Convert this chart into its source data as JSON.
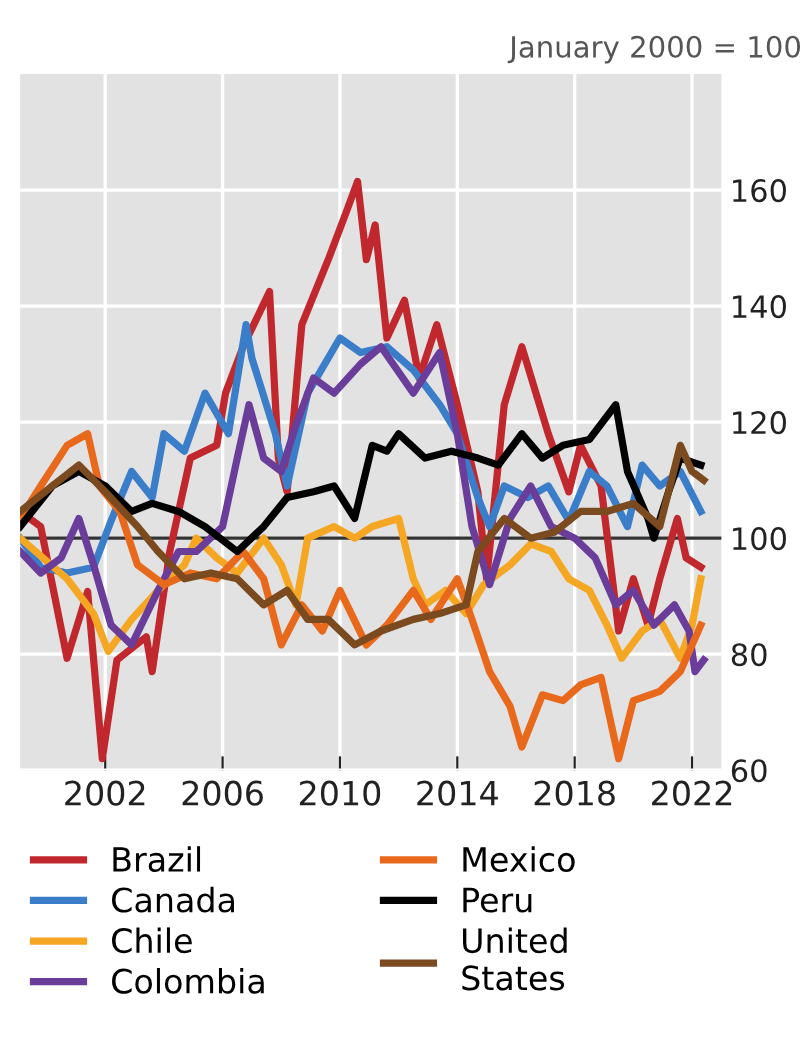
{
  "chart_data": {
    "type": "line",
    "subtitle": "January 2000 = 100",
    "xlim": [
      1999.1,
      2023.0
    ],
    "xticks": [
      2002,
      2006,
      2010,
      2014,
      2018,
      2022
    ],
    "ylim": [
      60,
      180
    ],
    "yticks": [
      60,
      80,
      100,
      120,
      140,
      160
    ],
    "grid": true,
    "legend": "bottom",
    "line_style": "solid",
    "marker": "none",
    "ref_lines": [
      {
        "axis": "y",
        "value": 100,
        "color": "#333333"
      }
    ],
    "series": [
      {
        "name": "Brazil",
        "color": "#c0282d",
        "x": [
          1999.1,
          1999.8,
          2000.7,
          2001.4,
          2001.9,
          2002.4,
          2003.4,
          2003.6,
          2004.2,
          2004.9,
          2005.8,
          2006.1,
          2006.7,
          2007.6,
          2007.9,
          2008.2,
          2008.7,
          2009.6,
          2010.2,
          2010.6,
          2010.9,
          2011.2,
          2011.6,
          2012.2,
          2012.7,
          2013.3,
          2014.0,
          2014.7,
          2015.0,
          2015.6,
          2016.2,
          2017.1,
          2017.8,
          2018.2,
          2018.9,
          2019.5,
          2020.0,
          2020.5,
          2020.9,
          2021.5,
          2021.8,
          2022.3
        ],
        "values": [
          104.6,
          102,
          79.3,
          90.8,
          62,
          79,
          83,
          77,
          97.7,
          113.8,
          116,
          125,
          133,
          142.5,
          113.8,
          108,
          136.8,
          148,
          156,
          161.5,
          148,
          154,
          134.5,
          141,
          127.6,
          136.8,
          123,
          108,
          93,
          123,
          133,
          118,
          108,
          116,
          109,
          84,
          93,
          85,
          93,
          103.4,
          96.6,
          95
        ]
      },
      {
        "name": "Canada",
        "color": "#3a7dc9",
        "x": [
          1999.1,
          1999.8,
          2000.7,
          2001.6,
          2002.2,
          2002.9,
          2003.6,
          2004.0,
          2004.7,
          2005.4,
          2006.2,
          2006.8,
          2007.0,
          2007.8,
          2008.2,
          2008.9,
          2010.0,
          2010.7,
          2011.6,
          2012.5,
          2013.4,
          2014.0,
          2014.7,
          2015.1,
          2015.6,
          2016.4,
          2017.1,
          2017.8,
          2018.5,
          2019.1,
          2019.8,
          2020.3,
          2020.9,
          2021.6,
          2022.3
        ],
        "values": [
          100,
          95,
          94,
          95,
          103,
          111.5,
          107,
          118,
          115,
          125,
          118,
          136.8,
          131,
          118,
          109,
          125,
          134.5,
          132,
          133,
          129,
          123,
          118,
          107,
          102,
          109,
          107,
          109,
          103,
          111.5,
          109,
          102,
          112.6,
          109,
          111.5,
          104.6
        ]
      },
      {
        "name": "Chile",
        "color": "#f5a623",
        "x": [
          1999.1,
          2000.7,
          2001.6,
          2002.1,
          2002.9,
          2003.8,
          2004.7,
          2005.1,
          2005.8,
          2006.5,
          2007.4,
          2008.0,
          2008.5,
          2008.9,
          2009.8,
          2010.5,
          2011.1,
          2012.0,
          2012.5,
          2012.9,
          2013.6,
          2014.3,
          2014.9,
          2015.8,
          2016.5,
          2017.2,
          2017.8,
          2018.5,
          2019.1,
          2019.6,
          2020.3,
          2020.9,
          2021.6,
          2022.0,
          2022.3
        ],
        "values": [
          100,
          93,
          87,
          80.5,
          86,
          91,
          95.4,
          100,
          96.6,
          94,
          100,
          95.4,
          88.5,
          100,
          102,
          100,
          102,
          103.4,
          93,
          88.5,
          91,
          87,
          92,
          95.4,
          99,
          97.7,
          93,
          91,
          85,
          79.3,
          84,
          86,
          79.3,
          85,
          93
        ]
      },
      {
        "name": "Colombia",
        "color": "#6a3d9a",
        "x": [
          1999.1,
          1999.8,
          2000.5,
          2001.1,
          2001.6,
          2002.2,
          2002.9,
          2003.8,
          2004.5,
          2005.1,
          2006.0,
          2006.5,
          2006.9,
          2007.4,
          2008.0,
          2008.5,
          2009.1,
          2009.8,
          2010.7,
          2011.4,
          2012.5,
          2013.4,
          2014.0,
          2014.5,
          2015.1,
          2015.8,
          2016.5,
          2017.2,
          2018.0,
          2018.7,
          2019.4,
          2020.0,
          2020.7,
          2021.4,
          2021.9,
          2022.1,
          2022.4
        ],
        "values": [
          97.7,
          94,
          96.6,
          103.4,
          95.4,
          85,
          81.6,
          91,
          97.7,
          97.7,
          102,
          113.8,
          123,
          113.8,
          111.5,
          119.5,
          127.6,
          125,
          130,
          133,
          125,
          132,
          118,
          102,
          92,
          103.4,
          109,
          102,
          100,
          96.6,
          88.5,
          91,
          85,
          88.5,
          84,
          77,
          79
        ]
      },
      {
        "name": "Mexico",
        "color": "#e8691c",
        "x": [
          1999.1,
          1999.8,
          2000.7,
          2001.4,
          2001.8,
          2002.5,
          2003.1,
          2004.0,
          2004.9,
          2005.8,
          2006.7,
          2007.4,
          2008.0,
          2008.7,
          2009.4,
          2010.0,
          2010.9,
          2011.6,
          2012.5,
          2013.1,
          2014.0,
          2014.5,
          2015.1,
          2015.8,
          2016.2,
          2016.9,
          2017.6,
          2018.2,
          2018.9,
          2019.5,
          2020.0,
          2020.9,
          2021.6,
          2022.3
        ],
        "values": [
          103.4,
          109,
          116,
          118,
          109,
          104.6,
          95.4,
          92,
          94,
          93,
          97.7,
          93,
          81.6,
          88.5,
          84,
          91,
          81.6,
          85,
          91,
          86,
          93,
          86,
          77,
          71,
          64,
          73,
          72,
          74.7,
          76,
          62,
          72,
          73.6,
          77,
          85
        ]
      },
      {
        "name": "Peru",
        "color": "#000000",
        "x": [
          1999.1,
          2000.2,
          2001.1,
          2002.0,
          2002.9,
          2003.6,
          2004.5,
          2005.4,
          2006.5,
          2007.4,
          2008.2,
          2009.1,
          2009.8,
          2010.5,
          2011.1,
          2011.6,
          2012.0,
          2012.9,
          2013.8,
          2014.7,
          2015.4,
          2016.2,
          2016.9,
          2017.6,
          2018.5,
          2019.4,
          2019.8,
          2020.5,
          2020.7,
          2021.2,
          2021.6,
          2022.3
        ],
        "values": [
          102,
          109,
          111.5,
          109,
          104.6,
          106,
          104.6,
          102,
          97.7,
          102,
          107,
          108,
          109,
          103.4,
          116,
          115,
          118,
          113.8,
          115,
          113.8,
          112.6,
          118,
          113.8,
          116,
          117,
          123,
          111.5,
          103.4,
          100,
          108,
          113.8,
          112.6
        ]
      },
      {
        "name": "United States",
        "color": "#7b4a1e",
        "x": [
          1999.1,
          2000.2,
          2001.1,
          2002.0,
          2003.1,
          2003.8,
          2004.7,
          2005.6,
          2006.5,
          2007.4,
          2008.2,
          2008.9,
          2009.6,
          2010.5,
          2011.4,
          2012.5,
          2013.4,
          2014.3,
          2014.7,
          2015.6,
          2016.5,
          2017.3,
          2018.2,
          2019.1,
          2020.0,
          2020.9,
          2021.6,
          2022.0,
          2022.4
        ],
        "values": [
          104.6,
          109,
          112.6,
          108,
          102,
          97.7,
          93,
          94,
          93,
          88.5,
          91,
          86,
          86,
          81.6,
          84,
          86,
          87,
          88.5,
          97.7,
          103.4,
          100,
          101,
          104.6,
          104.6,
          106,
          102,
          116,
          111.5,
          110
        ]
      }
    ]
  }
}
